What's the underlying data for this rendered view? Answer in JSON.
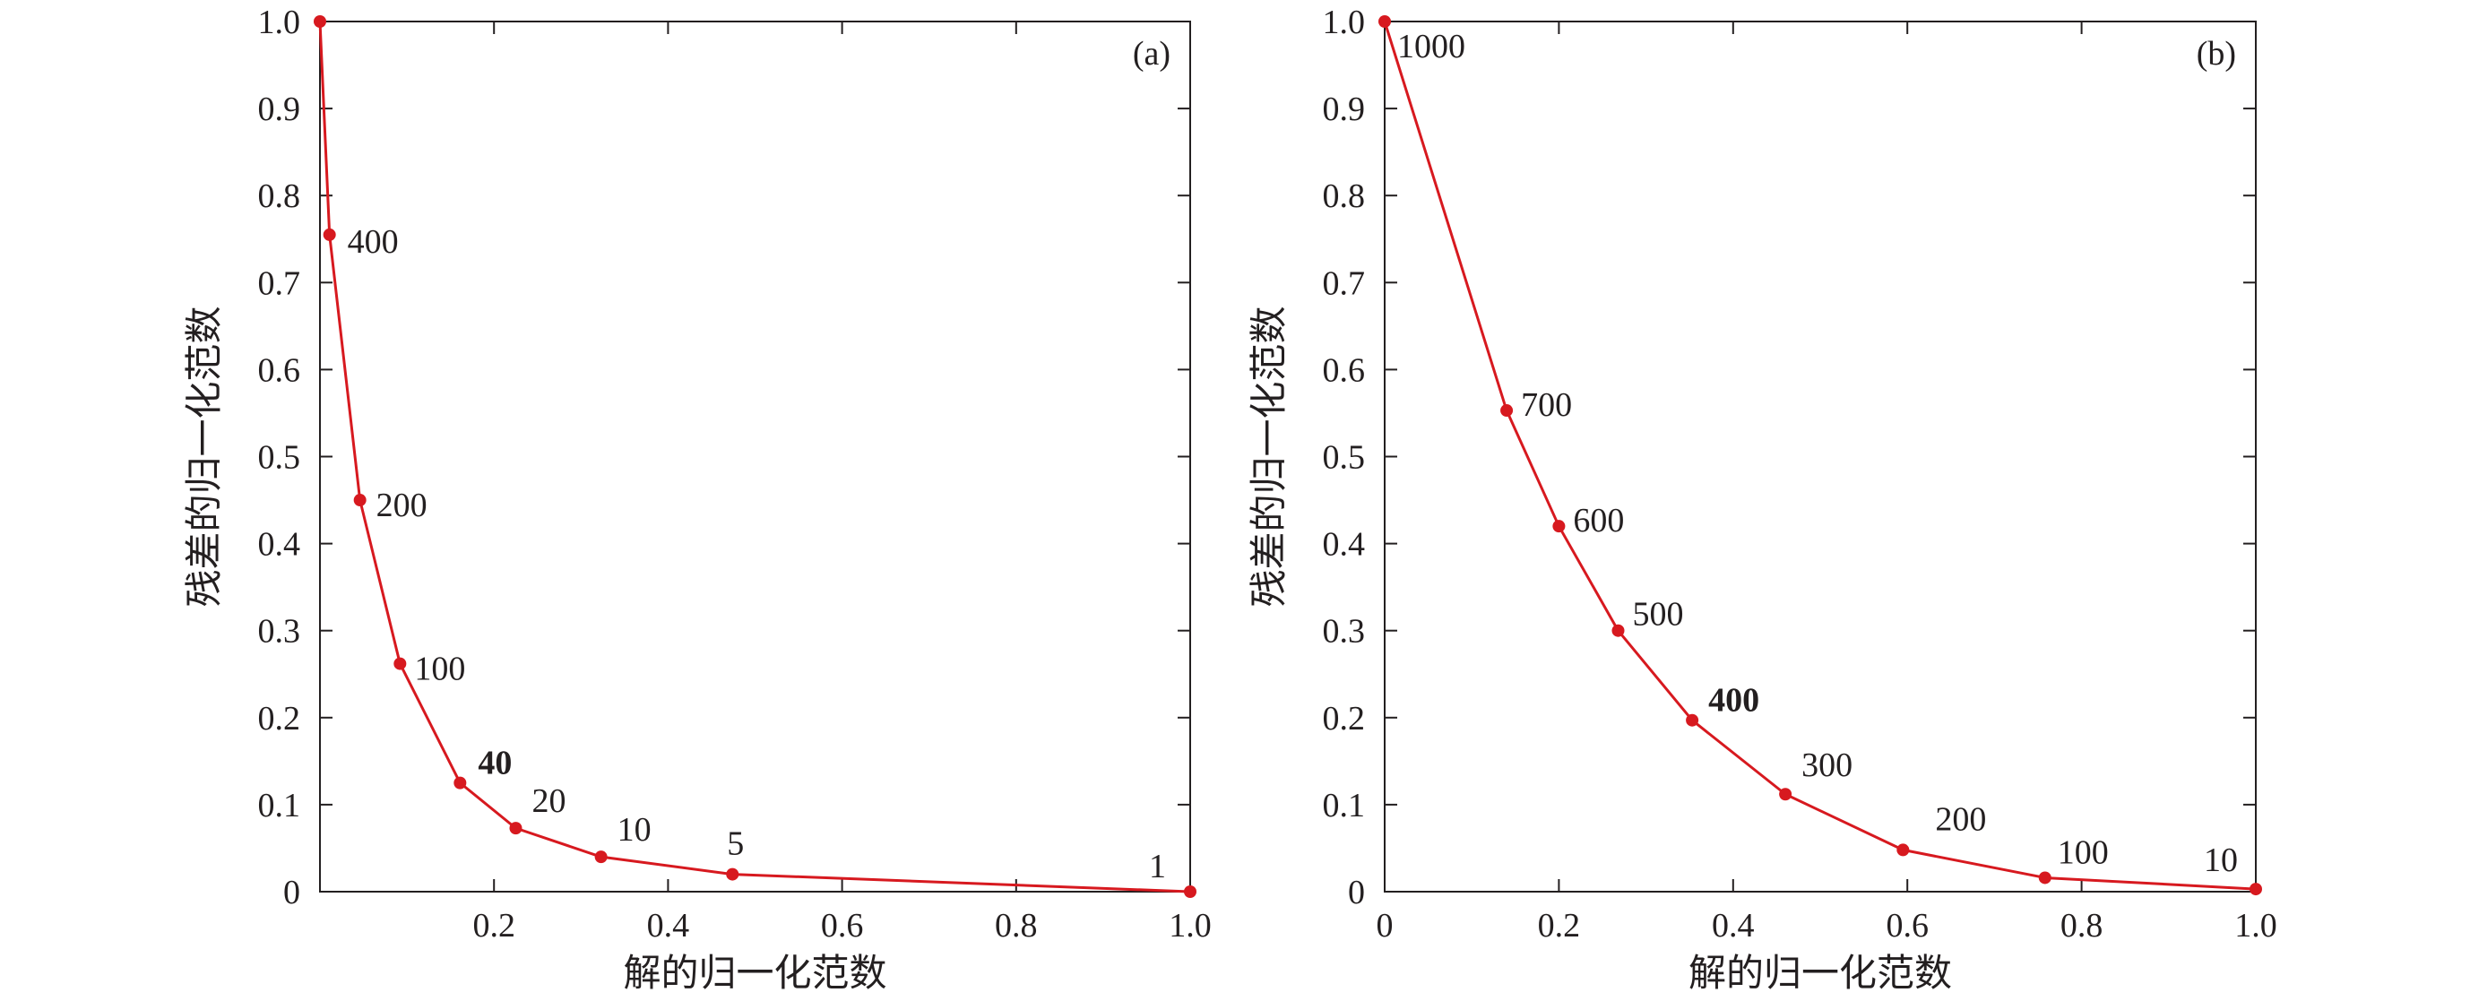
{
  "colors": {
    "series": "#d7191f",
    "axis": "#231f20",
    "background": "#ffffff"
  },
  "chart_data": [
    {
      "type": "line",
      "panel_label": "(a)",
      "xlabel": "解的归一化范数",
      "ylabel": "残差的归一化范数",
      "xlim": [
        0,
        1.0
      ],
      "ylim": [
        0,
        1.0
      ],
      "xticks": [
        0,
        0.2,
        0.4,
        0.6,
        0.8,
        1.0
      ],
      "xtick_labels": [
        "",
        "0.2",
        "0.4",
        "0.6",
        "0.8",
        "1.0"
      ],
      "yticks": [
        0,
        0.1,
        0.2,
        0.3,
        0.4,
        0.5,
        0.6,
        0.7,
        0.8,
        0.9,
        1.0
      ],
      "ytick_labels": [
        "0",
        "0.1",
        "0.2",
        "0.3",
        "0.4",
        "0.5",
        "0.6",
        "0.7",
        "0.8",
        "0.9",
        "1.0"
      ],
      "grid": false,
      "series": [
        {
          "x": [
            0.0,
            0.011,
            0.046,
            0.092,
            0.161,
            0.225,
            0.323,
            0.474,
            1.0
          ],
          "y": [
            1.0,
            0.755,
            0.45,
            0.262,
            0.125,
            0.073,
            0.04,
            0.02,
            0.0
          ],
          "point_labels": [
            "",
            "400",
            "200",
            "100",
            "40",
            "20",
            "10",
            "5",
            "1"
          ],
          "bold_labels": [
            "40"
          ]
        }
      ]
    },
    {
      "type": "line",
      "panel_label": "(b)",
      "xlabel": "解的归一化范数",
      "ylabel": "残差的归一化范数",
      "xlim": [
        0,
        1.0
      ],
      "ylim": [
        0,
        1.0
      ],
      "xticks": [
        0,
        0.2,
        0.4,
        0.6,
        0.8,
        1.0
      ],
      "xtick_labels": [
        "0",
        "0.2",
        "0.4",
        "0.6",
        "0.8",
        "1.0"
      ],
      "yticks": [
        0,
        0.1,
        0.2,
        0.3,
        0.4,
        0.5,
        0.6,
        0.7,
        0.8,
        0.9,
        1.0
      ],
      "ytick_labels": [
        "0",
        "0.1",
        "0.2",
        "0.3",
        "0.4",
        "0.5",
        "0.6",
        "0.7",
        "0.8",
        "0.9",
        "1.0"
      ],
      "grid": false,
      "series": [
        {
          "x": [
            0.0,
            0.14,
            0.2,
            0.268,
            0.353,
            0.46,
            0.595,
            0.758,
            1.0
          ],
          "y": [
            1.0,
            0.553,
            0.42,
            0.3,
            0.197,
            0.112,
            0.048,
            0.016,
            0.003
          ],
          "point_labels": [
            "1000",
            "700",
            "600",
            "500",
            "400",
            "300",
            "200",
            "100",
            "10"
          ],
          "bold_labels": [
            "400"
          ]
        }
      ]
    }
  ]
}
